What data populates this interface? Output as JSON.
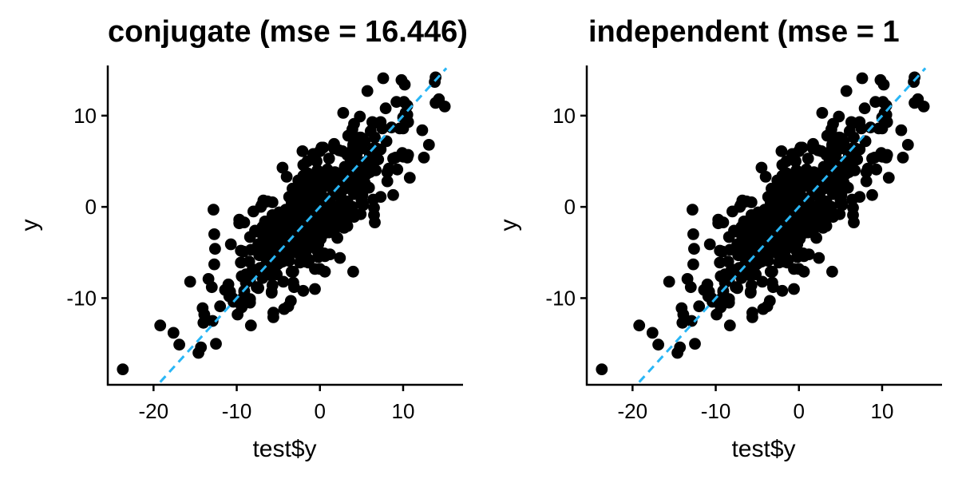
{
  "chart_data": [
    {
      "type": "scatter",
      "title": "conjugate (mse = 16.446)",
      "xlabel": "test$y",
      "ylabel": "y",
      "xlim": [
        -25.5,
        17.2
      ],
      "ylim": [
        -19.5,
        15.5
      ],
      "xticks": [
        -20,
        -10,
        0,
        10
      ],
      "xtick_labels": [
        "-20",
        "-10",
        "0",
        "10"
      ],
      "yticks": [
        -10,
        0,
        10
      ],
      "ytick_labels": [
        "-10",
        "0",
        "10"
      ],
      "reference_line": {
        "slope": 1,
        "intercept": 0,
        "style": "dashed"
      },
      "grid": false,
      "legend": "none",
      "n_points": 450,
      "points": []
    },
    {
      "type": "scatter",
      "title": "independent (mse = 1",
      "xlabel": "test$y",
      "ylabel": "y",
      "xlim": [
        -25.5,
        17.2
      ],
      "ylim": [
        -19.5,
        15.5
      ],
      "xticks": [
        -20,
        -10,
        0,
        10
      ],
      "xtick_labels": [
        "-20",
        "-10",
        "0",
        "10"
      ],
      "yticks": [
        -10,
        0,
        10
      ],
      "ytick_labels": [
        "-10",
        "0",
        "10"
      ],
      "reference_line": {
        "slope": 1,
        "intercept": 0,
        "style": "dashed"
      },
      "grid": false,
      "legend": "none",
      "n_points": 450,
      "points": []
    }
  ],
  "colors": {
    "point": "#000000",
    "reference_line": "#29B6F6",
    "axis": "#000000",
    "background": "#ffffff"
  }
}
